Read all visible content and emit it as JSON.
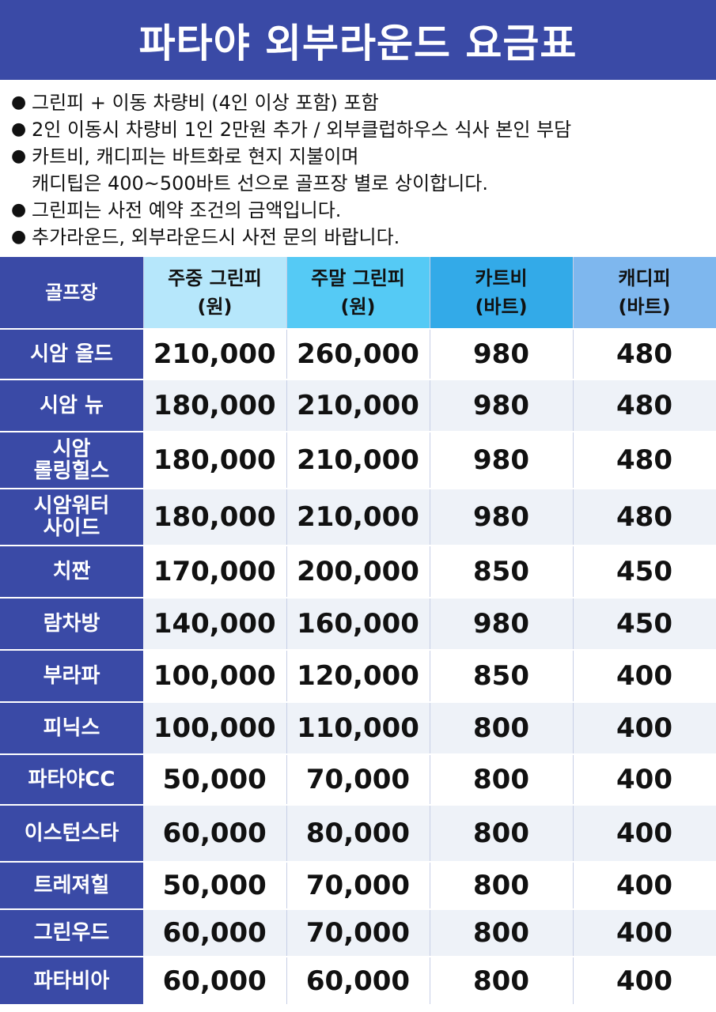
{
  "title": "파타야 외부라운드 요금표",
  "notes": [
    [
      "그린피 + 이동 차량비 (4인 이상 포함) 포함"
    ],
    [
      "2인 이동시 차량비 1인 2만원 추가 / 외부클럽하우스 식사 본인 부담"
    ],
    [
      "카트비, 캐디피는 바트화로 현지 지불이며",
      "캐디팁은 400~500바트 선으로 골프장 별로 상이합니다."
    ],
    [
      "그린피는 사전 예약 조건의 금액입니다."
    ],
    [
      "추가라운드, 외부라운드시 사전 문의 바랍니다."
    ]
  ],
  "table": {
    "headers": [
      [
        "골프장"
      ],
      [
        "주중 그린피",
        "(원)"
      ],
      [
        "주말 그린피",
        "(원)"
      ],
      [
        "카트비",
        "(바트)"
      ],
      [
        "캐디피",
        "(바트)"
      ]
    ],
    "rows": [
      {
        "name": [
          "시암 올드"
        ],
        "weekday": "210,000",
        "weekend": "260,000",
        "cart": "980",
        "caddie": "480"
      },
      {
        "name": [
          "시암 뉴"
        ],
        "weekday": "180,000",
        "weekend": "210,000",
        "cart": "980",
        "caddie": "480"
      },
      {
        "name": [
          "시암",
          "롤링힐스"
        ],
        "weekday": "180,000",
        "weekend": "210,000",
        "cart": "980",
        "caddie": "480"
      },
      {
        "name": [
          "시암워터",
          "사이드"
        ],
        "weekday": "180,000",
        "weekend": "210,000",
        "cart": "980",
        "caddie": "480"
      },
      {
        "name": [
          "치짠"
        ],
        "weekday": "170,000",
        "weekend": "200,000",
        "cart": "850",
        "caddie": "450"
      },
      {
        "name": [
          "람차방"
        ],
        "weekday": "140,000",
        "weekend": "160,000",
        "cart": "980",
        "caddie": "450"
      },
      {
        "name": [
          "부라파"
        ],
        "weekday": "100,000",
        "weekend": "120,000",
        "cart": "850",
        "caddie": "400"
      },
      {
        "name": [
          "피닉스"
        ],
        "weekday": "100,000",
        "weekend": "110,000",
        "cart": "800",
        "caddie": "400"
      },
      {
        "name": [
          "파타야CC"
        ],
        "weekday": "50,000",
        "weekend": "70,000",
        "cart": "800",
        "caddie": "400"
      },
      {
        "name": [
          "이스턴스타"
        ],
        "weekday": "60,000",
        "weekend": "80,000",
        "cart": "800",
        "caddie": "400"
      },
      {
        "name": [
          "트레져힐"
        ],
        "weekday": "50,000",
        "weekend": "70,000",
        "cart": "800",
        "caddie": "400"
      },
      {
        "name": [
          "그린우드"
        ],
        "weekday": "60,000",
        "weekend": "70,000",
        "cart": "800",
        "caddie": "400"
      },
      {
        "name": [
          "파타비아"
        ],
        "weekday": "60,000",
        "weekend": "60,000",
        "cart": "800",
        "caddie": "400"
      }
    ]
  }
}
